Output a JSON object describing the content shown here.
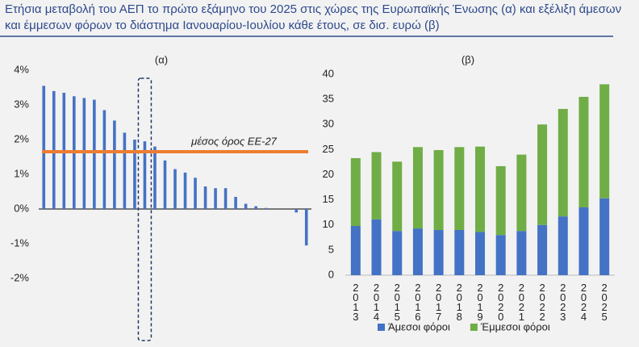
{
  "title": "Ετήσια μεταβολή του ΑΕΠ το πρώτο εξάμηνο του 2025 στις χώρες της Ευρωπαϊκής Ένωσης (α) και εξέλιξη άμεσων και έμμεσων φόρων το διάστημα Ιανουαρίου-Ιουλίου κάθε έτους, σε δισ. ευρώ (β)",
  "chart_data": [
    {
      "type": "bar",
      "title": "(α)",
      "categories": [
        null,
        null,
        null,
        null,
        null,
        null,
        null,
        null,
        null,
        null,
        null,
        null,
        null,
        null,
        null,
        null,
        null,
        null,
        null,
        null,
        null,
        null,
        null,
        null,
        null,
        null,
        null
      ],
      "values": [
        3.55,
        3.4,
        3.35,
        3.25,
        3.2,
        3.15,
        2.85,
        2.55,
        2.2,
        2.0,
        1.95,
        1.8,
        1.4,
        1.15,
        1.05,
        0.9,
        0.65,
        0.6,
        0.6,
        0.35,
        0.15,
        0.08,
        0.03,
        0.0,
        0.0,
        -0.1,
        -1.05
      ],
      "color": "#4472c4",
      "highlight": 10,
      "mean": 1.65,
      "mean_color": "#ed7d31",
      "annotation": "μέσος όρος ΕΕ-27",
      "ylim": [
        -2,
        4
      ],
      "yticks": [
        {
          "value": 4,
          "label": "4%"
        },
        {
          "value": 3,
          "label": "3%"
        },
        {
          "value": 2,
          "label": "2%"
        },
        {
          "value": 1,
          "label": "1%"
        },
        {
          "value": 0,
          "label": "0%"
        },
        {
          "value": -1,
          "label": "-1%"
        },
        {
          "value": -2,
          "label": "-2%"
        }
      ],
      "grid": false
    },
    {
      "type": "stacked_bar",
      "title": "(β)",
      "categories": [
        "2013",
        "2014",
        "2015",
        "2016",
        "2017",
        "2018",
        "2019",
        "2020",
        "2021",
        "2022",
        "2023",
        "2024",
        "2025"
      ],
      "series": [
        {
          "name": "Άμεσοι φόροι",
          "color": "#4472c4",
          "values": [
            9.8,
            11.1,
            8.8,
            9.3,
            9.0,
            9.0,
            8.6,
            8.0,
            8.8,
            10.0,
            11.7,
            13.5,
            15.3
          ]
        },
        {
          "name": "Έμμεσοι φόροι",
          "color": "#70ad47",
          "values": [
            13.5,
            13.4,
            13.8,
            16.2,
            15.9,
            16.5,
            17.0,
            13.7,
            15.2,
            20.0,
            21.4,
            22.0,
            22.7
          ]
        }
      ],
      "ylim": [
        0,
        40
      ],
      "yticks": [
        0,
        5,
        10,
        15,
        20,
        25,
        30,
        35,
        40
      ],
      "grid": false,
      "legend": "bottom"
    }
  ]
}
